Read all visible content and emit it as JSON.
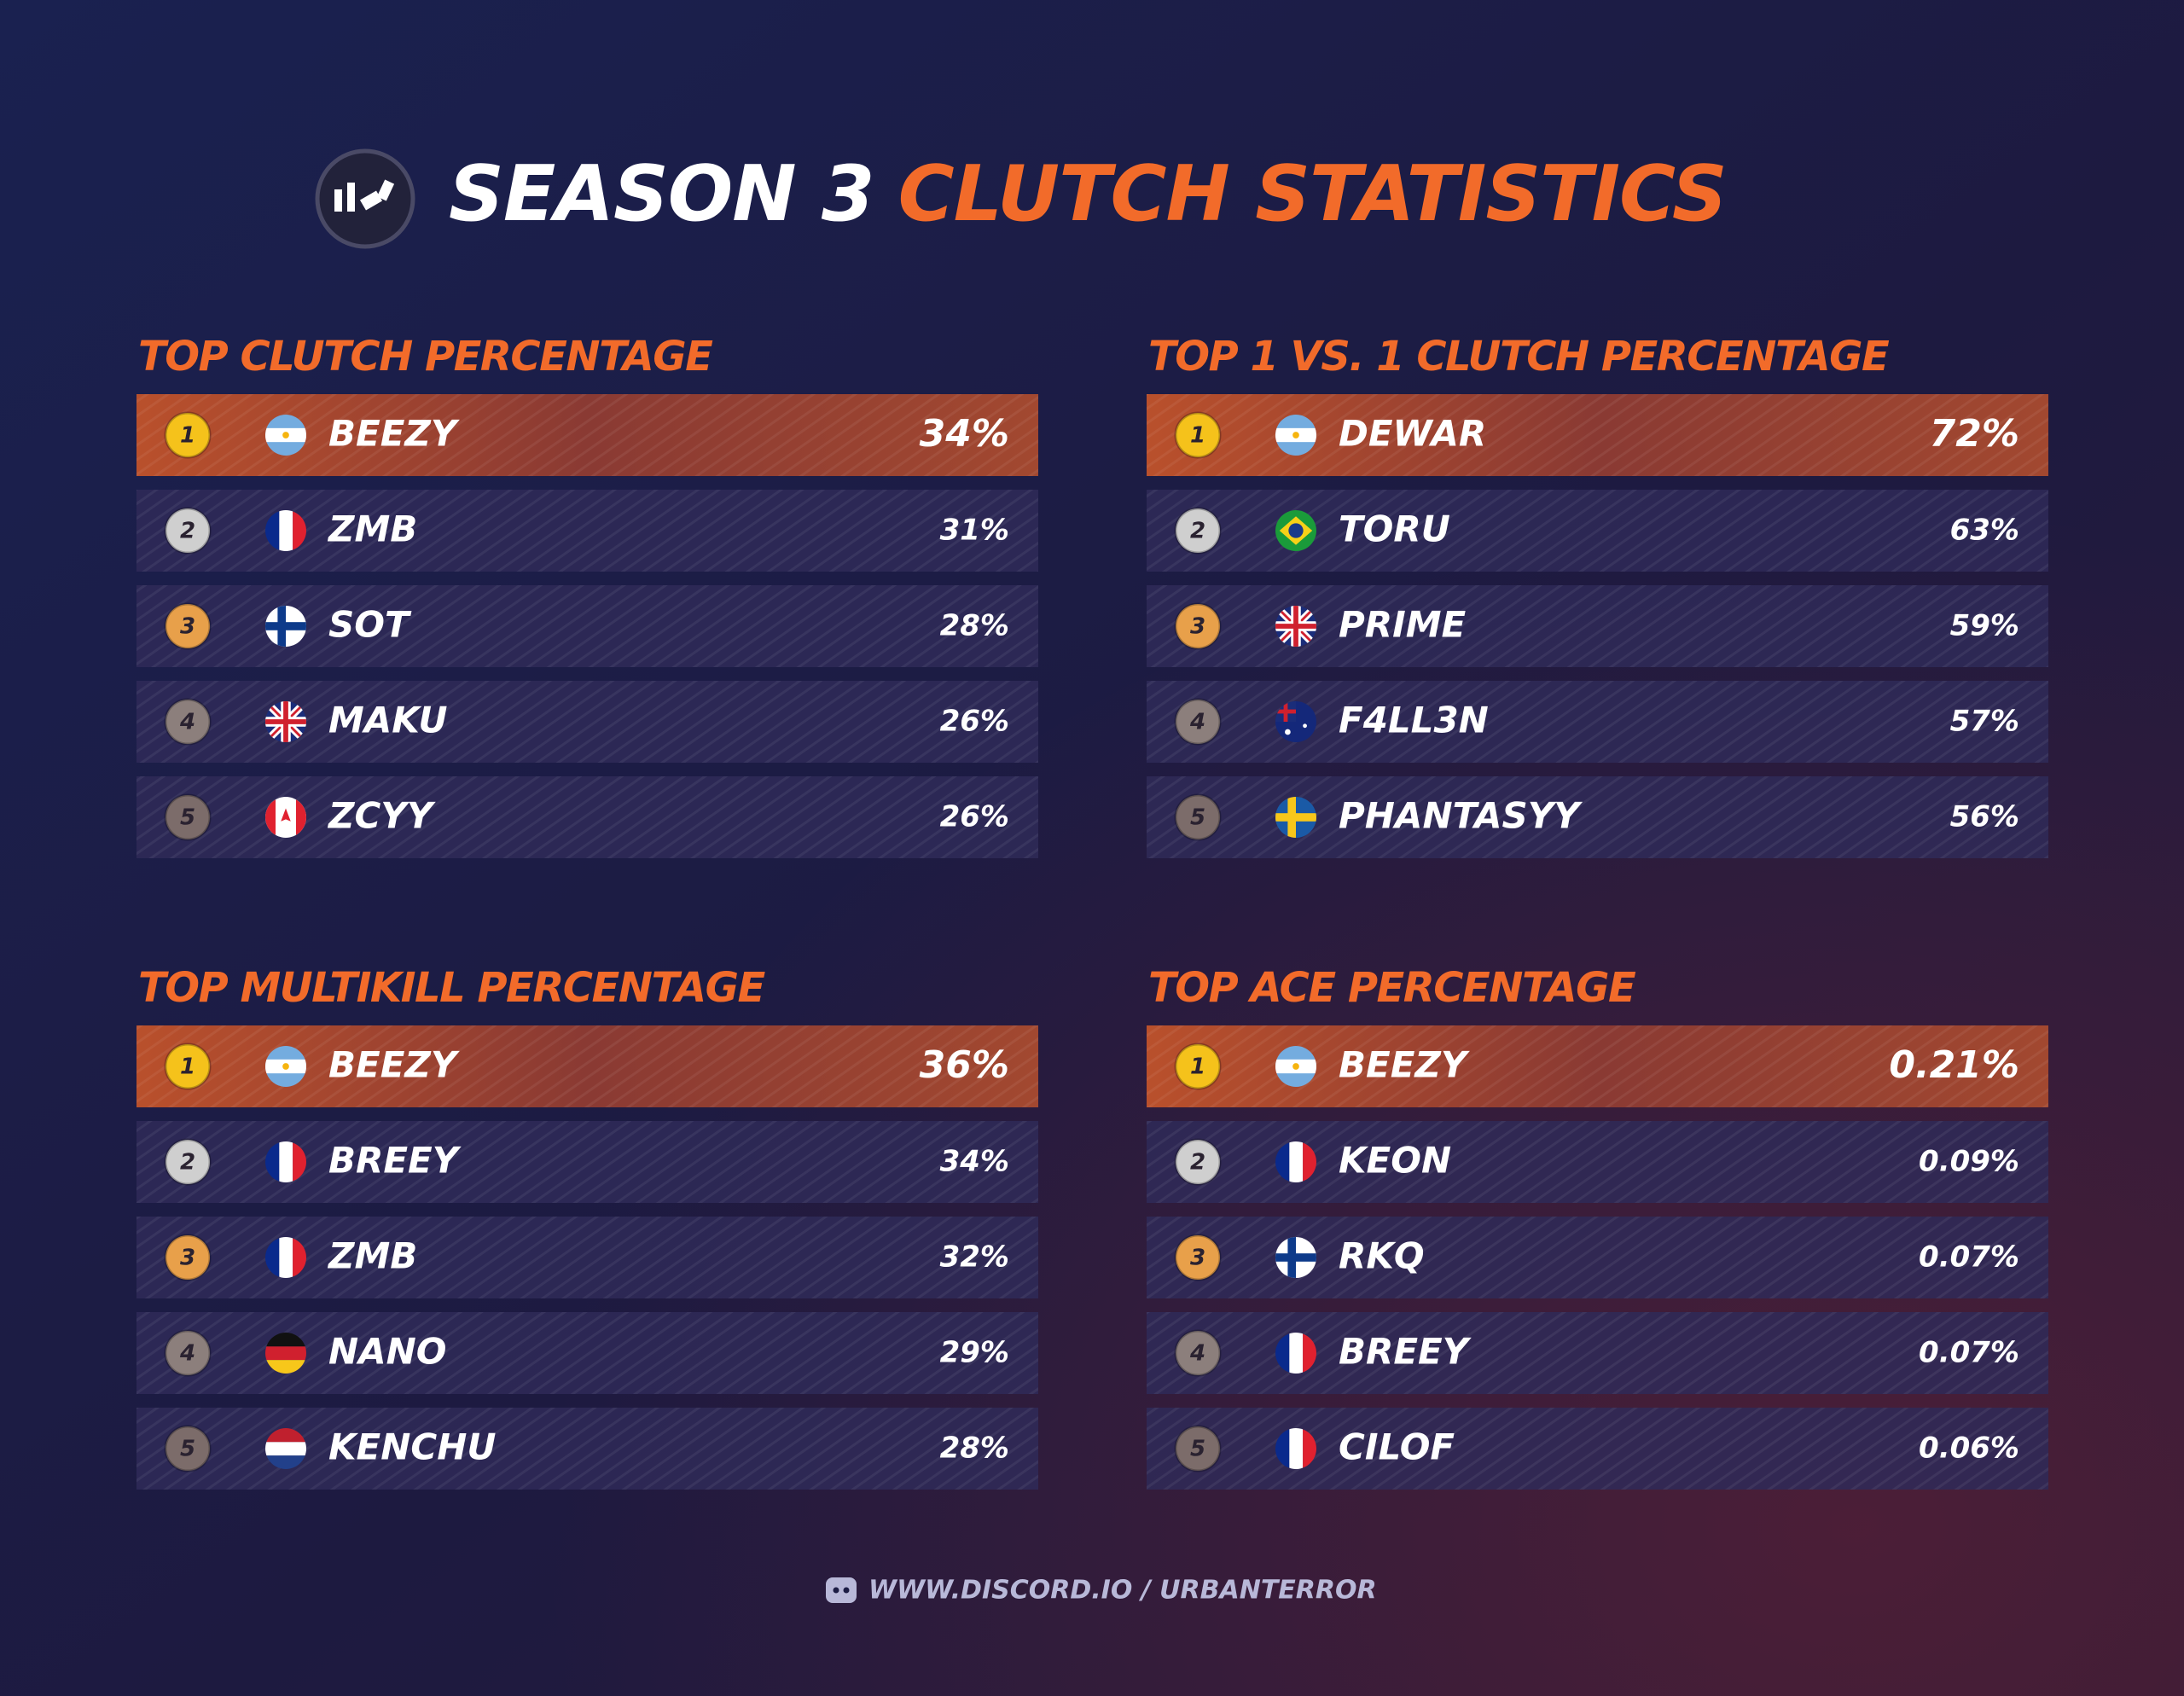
{
  "header": {
    "title_white": "SEASON 3",
    "title_orange": "CLUTCH STATISTICS"
  },
  "sections": [
    {
      "title": "TOP CLUTCH PERCENTAGE",
      "rows": [
        {
          "rank": "1",
          "name": "BEEZY",
          "value": "34%"
        },
        {
          "rank": "2",
          "name": "ZMB",
          "value": "31%"
        },
        {
          "rank": "3",
          "name": "SOT",
          "value": "28%"
        },
        {
          "rank": "4",
          "name": "MAKU",
          "value": "26%"
        },
        {
          "rank": "5",
          "name": "ZCYY",
          "value": "26%"
        }
      ]
    },
    {
      "title": "TOP 1 VS. 1 CLUTCH PERCENTAGE",
      "rows": [
        {
          "rank": "1",
          "name": "DEWAR",
          "value": "72%"
        },
        {
          "rank": "2",
          "name": "TORU",
          "value": "63%"
        },
        {
          "rank": "3",
          "name": "PRIME",
          "value": "59%"
        },
        {
          "rank": "4",
          "name": "F4LL3N",
          "value": "57%"
        },
        {
          "rank": "5",
          "name": "PHANTASYY",
          "value": "56%"
        }
      ]
    },
    {
      "title": "TOP MULTIKILL PERCENTAGE",
      "rows": [
        {
          "rank": "1",
          "name": "BEEZY",
          "value": "36%"
        },
        {
          "rank": "2",
          "name": "BREEY",
          "value": "34%"
        },
        {
          "rank": "3",
          "name": "ZMB",
          "value": "32%"
        },
        {
          "rank": "4",
          "name": "NANO",
          "value": "29%"
        },
        {
          "rank": "5",
          "name": "KENCHU",
          "value": "28%"
        }
      ]
    },
    {
      "title": "TOP ACE PERCENTAGE",
      "rows": [
        {
          "rank": "1",
          "name": "BEEZY",
          "value": "0.21%"
        },
        {
          "rank": "2",
          "name": "KEON",
          "value": "0.09%"
        },
        {
          "rank": "3",
          "name": "RKQ",
          "value": "0.07%"
        },
        {
          "rank": "4",
          "name": "BREEY",
          "value": "0.07%"
        },
        {
          "rank": "5",
          "name": "CILOF",
          "value": "0.06%"
        }
      ]
    }
  ],
  "footer": {
    "text": "WWW.DISCORD.IO / URBANTERROR"
  }
}
